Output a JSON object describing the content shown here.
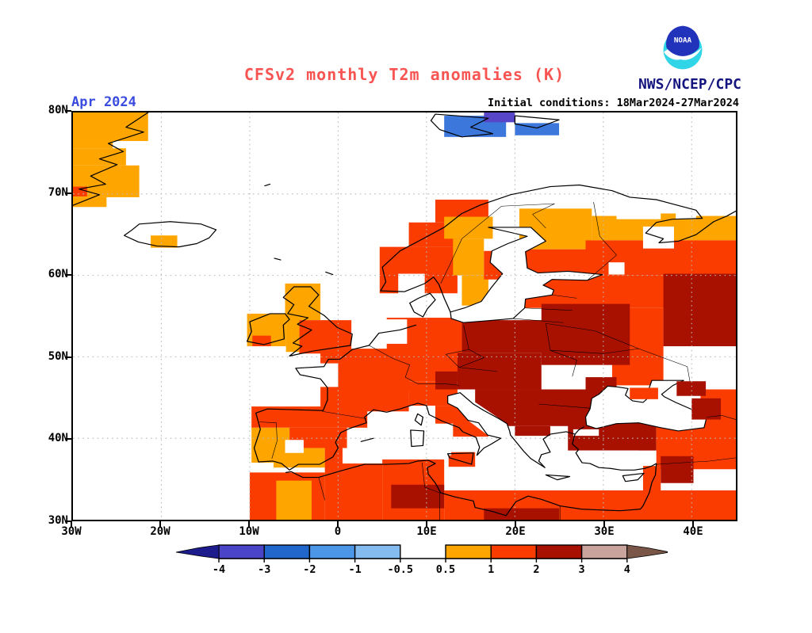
{
  "header": {
    "title": "CFSv2 monthly T2m anomalies (K)",
    "title_color": "#F85452",
    "date_label": "Apr 2024",
    "date_color": "#3A4BE0",
    "init_label": "Initial conditions: 18Mar2024-27Mar2024",
    "agency": "NWS/NCEP/CPC",
    "agency_color": "#151580"
  },
  "logo": {
    "text": "NOAA",
    "top_color": "#2233BB",
    "bottom_color": "#30D5E8"
  },
  "axes": {
    "lat_ticks": [
      {
        "label": "80N",
        "lat": 80
      },
      {
        "label": "70N",
        "lat": 70
      },
      {
        "label": "60N",
        "lat": 60
      },
      {
        "label": "50N",
        "lat": 50
      },
      {
        "label": "40N",
        "lat": 40
      },
      {
        "label": "30N",
        "lat": 30
      }
    ],
    "lon_ticks": [
      {
        "label": "30W",
        "lon": -30
      },
      {
        "label": "20W",
        "lon": -20
      },
      {
        "label": "10W",
        "lon": -10
      },
      {
        "label": "0",
        "lon": 0
      },
      {
        "label": "10E",
        "lon": 10
      },
      {
        "label": "20E",
        "lon": 20
      },
      {
        "label": "30E",
        "lon": 30
      },
      {
        "label": "40E",
        "lon": 40
      }
    ]
  },
  "colorbar": {
    "labels": [
      "-4",
      "-3",
      "-2",
      "-1",
      "-0.5",
      "0.5",
      "1",
      "2",
      "3",
      "4"
    ],
    "segment_colors": [
      "#4A44C8",
      "#2166CB",
      "#4C96E8",
      "#85BCF0",
      "#FFFFFF",
      "#FFA500",
      "#FA3C00",
      "#A81000",
      "#C8A49C"
    ],
    "left_arrow_color": "#1C1C8C",
    "right_arrow_color": "#7A5648"
  },
  "map": {
    "palette": {
      "o": "#FFA500",
      "r": "#FA3C00",
      "d": "#A81000",
      "b": "#3C78DC",
      "p": "#5846C8",
      "w": "#FFFFFF"
    },
    "anomaly_blocks": [
      [
        -30,
        80,
        -21.5,
        76.5,
        "o"
      ],
      [
        -30,
        76.5,
        -25.5,
        75.6,
        "o"
      ],
      [
        -30,
        75.6,
        -24,
        73.5,
        "o"
      ],
      [
        -30,
        73.5,
        -22.5,
        69.6,
        "o"
      ],
      [
        -30,
        69.6,
        -26.2,
        68.4,
        "o"
      ],
      [
        -30,
        70.9,
        -28.4,
        69.7,
        "r"
      ],
      [
        -21.2,
        64.9,
        -18.2,
        63.4,
        "o"
      ],
      [
        12,
        79.6,
        19,
        77,
        "b"
      ],
      [
        16.5,
        80,
        20,
        78.8,
        "p"
      ],
      [
        20,
        78.7,
        25,
        77.2,
        "b"
      ],
      [
        -6,
        59,
        -2,
        54.5,
        "o"
      ],
      [
        -4.4,
        54.5,
        1.5,
        50.4,
        "r"
      ],
      [
        -5.9,
        54.9,
        -4.4,
        50.6,
        "o"
      ],
      [
        -10.3,
        55.3,
        -5.9,
        51.3,
        "o"
      ],
      [
        -9.7,
        52.6,
        -7.6,
        51.3,
        "r"
      ],
      [
        4.7,
        63.5,
        13.5,
        57.8,
        "r"
      ],
      [
        8,
        66.5,
        14,
        63.5,
        "r"
      ],
      [
        11,
        69.3,
        17,
        66.5,
        "r"
      ],
      [
        12,
        67.2,
        17.5,
        64.5,
        "o"
      ],
      [
        13,
        64.5,
        16.5,
        60,
        "o"
      ],
      [
        14,
        60,
        17,
        56.3,
        "o"
      ],
      [
        16.5,
        63,
        19,
        59.5,
        "r"
      ],
      [
        20.5,
        68.2,
        28.7,
        63.2,
        "o"
      ],
      [
        28.7,
        67.3,
        45,
        64.3,
        "o"
      ],
      [
        21,
        63.2,
        31,
        59.8,
        "r"
      ],
      [
        21,
        60,
        45,
        56,
        "r"
      ],
      [
        28,
        64.3,
        45,
        60,
        "r"
      ],
      [
        31,
        56,
        36.8,
        46.5,
        "r"
      ],
      [
        5.5,
        54.8,
        14,
        47,
        "r"
      ],
      [
        6,
        47,
        11,
        45.8,
        "r"
      ],
      [
        -2,
        51,
        8,
        43.3,
        "r"
      ],
      [
        -9.8,
        43.9,
        3.3,
        41.3,
        "r"
      ],
      [
        -9.8,
        41.3,
        -5.5,
        37,
        "o"
      ],
      [
        -5.5,
        41.3,
        1,
        38.8,
        "r"
      ],
      [
        -7.3,
        38.8,
        -1.5,
        36.4,
        "o"
      ],
      [
        -1.5,
        39.5,
        0.5,
        36.7,
        "r"
      ],
      [
        8,
        46.5,
        13.5,
        44,
        "r"
      ],
      [
        11,
        44,
        14.5,
        41.8,
        "r"
      ],
      [
        13,
        42.5,
        17,
        40.2,
        "r"
      ],
      [
        12.5,
        38.3,
        15.5,
        36.5,
        "r"
      ],
      [
        11,
        48.2,
        13.5,
        46,
        "d"
      ],
      [
        13.5,
        50.5,
        23,
        46,
        "d"
      ],
      [
        14,
        54.5,
        24,
        50.5,
        "d"
      ],
      [
        23,
        56.5,
        33,
        49,
        "d"
      ],
      [
        36.8,
        60.2,
        45,
        51.3,
        "d"
      ],
      [
        15.5,
        46,
        30,
        41.5,
        "d"
      ],
      [
        20,
        41.5,
        24,
        40.3,
        "d"
      ],
      [
        28,
        47.5,
        31.5,
        45.3,
        "d"
      ],
      [
        26,
        42.2,
        36,
        38.5,
        "d"
      ],
      [
        36,
        42.5,
        45,
        36.2,
        "r"
      ],
      [
        41,
        46,
        45,
        42,
        "r"
      ],
      [
        36.5,
        37.8,
        40.2,
        34.5,
        "d"
      ],
      [
        34.5,
        36.6,
        36.5,
        33.5,
        "r"
      ],
      [
        -10,
        35.8,
        -1.5,
        30,
        "r"
      ],
      [
        -7,
        34.8,
        -3,
        30,
        "o"
      ],
      [
        -1.5,
        36.9,
        5,
        30,
        "r"
      ],
      [
        5,
        37.4,
        12,
        30,
        "r"
      ],
      [
        12,
        33.6,
        45,
        30,
        "r"
      ],
      [
        6,
        34.3,
        12,
        31.4,
        "d"
      ],
      [
        16.5,
        31.4,
        25,
        30,
        "d"
      ],
      [
        17.5,
        71,
        41.5,
        68.3,
        "w"
      ],
      [
        31.5,
        69.8,
        40.5,
        66.9,
        "w"
      ],
      [
        36.5,
        67.6,
        38.2,
        66.8,
        "o"
      ],
      [
        34.5,
        66,
        38,
        63.3,
        "w"
      ],
      [
        30.6,
        61.6,
        32.4,
        60.1,
        "w"
      ],
      [
        6.8,
        60.2,
        9.8,
        57.6,
        "w"
      ],
      [
        8,
        57.5,
        10.5,
        55.5,
        "w"
      ],
      [
        3.8,
        54.6,
        7.8,
        51.6,
        "w"
      ],
      [
        -2.7,
        49.2,
        0,
        46.3,
        "w"
      ],
      [
        -6,
        39.8,
        -3.9,
        38.2,
        "w"
      ],
      [
        27,
        38.5,
        34,
        36,
        "w"
      ]
    ],
    "overlay_blocks": [
      [
        33,
        46.2,
        36.2,
        44.8,
        "r"
      ],
      [
        38.3,
        47,
        41.6,
        45.2,
        "d"
      ],
      [
        40,
        44.9,
        43.3,
        42.3,
        "d"
      ]
    ]
  }
}
